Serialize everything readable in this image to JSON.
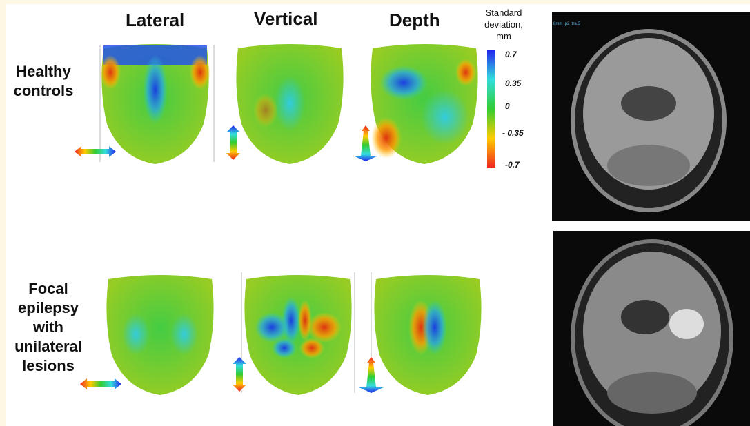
{
  "columns": [
    "Lateral",
    "Vertical",
    "Depth"
  ],
  "rows": [
    "Healthy controls",
    "Focal epilepsy with unilateral lesions"
  ],
  "colorbar": {
    "title": "Standard deviation, mm",
    "labels": [
      "0.7",
      "0.35",
      "0",
      "- 0.35",
      "-0.7"
    ]
  },
  "mri_caption": "8mm_p2_tra.5"
}
